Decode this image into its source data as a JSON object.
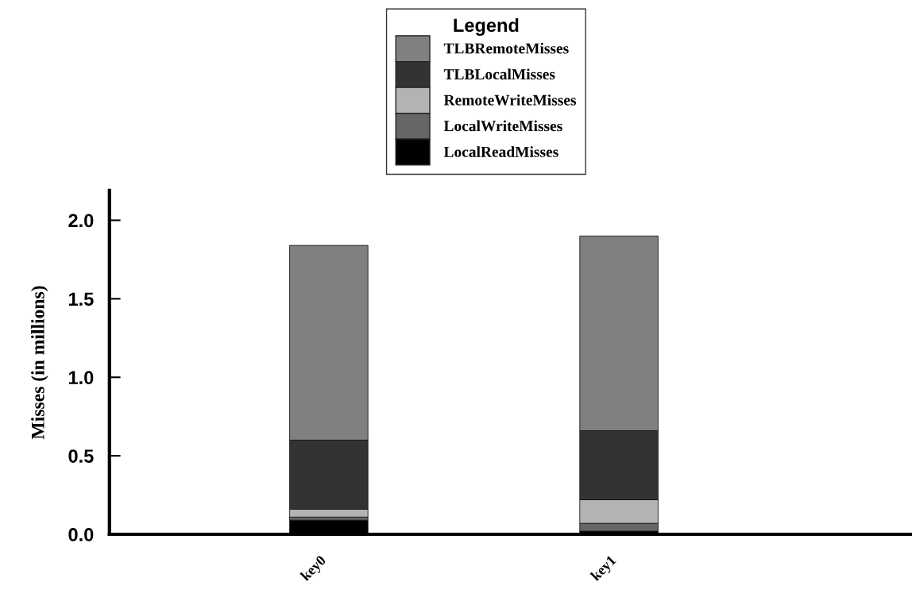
{
  "chart_data": {
    "type": "bar",
    "stacked": true,
    "ylabel": "Misses (in millions)",
    "legend_title": "Legend",
    "legend": "top",
    "categories": [
      "key0",
      "key1"
    ],
    "series": [
      {
        "name": "LocalReadMisses",
        "color": "#000000",
        "values": [
          0.09,
          0.02
        ]
      },
      {
        "name": "LocalWriteMisses",
        "color": "#666666",
        "values": [
          0.02,
          0.05
        ]
      },
      {
        "name": "RemoteWriteMisses",
        "color": "#b3b3b3",
        "values": [
          0.05,
          0.15
        ]
      },
      {
        "name": "TLBLocalMisses",
        "color": "#333333",
        "values": [
          0.44,
          0.44
        ]
      },
      {
        "name": "TLBRemoteMisses",
        "color": "#808080",
        "values": [
          1.24,
          1.24
        ]
      }
    ],
    "ylim": [
      0,
      2.19
    ],
    "yticks": [
      {
        "value": 0,
        "label": "0.0"
      },
      {
        "value": 0.5,
        "label": "0.5"
      },
      {
        "value": 1,
        "label": "1.0"
      },
      {
        "value": 1.5,
        "label": "1.5"
      },
      {
        "value": 2,
        "label": "2.0"
      }
    ],
    "grid": false
  }
}
